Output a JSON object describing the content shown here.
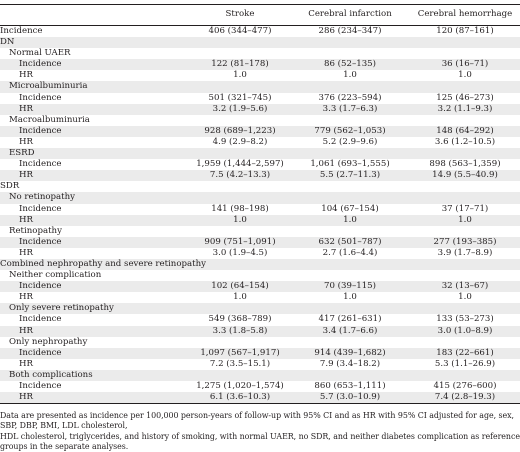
{
  "table": {
    "columns": [
      "",
      "Stroke",
      "Cerebral infarction",
      "Cerebral hemorrhage"
    ],
    "rows": [
      {
        "label": "Incidence",
        "indent": 0,
        "values": [
          "406 (344–477)",
          "286 (234–347)",
          "120 (87–161)"
        ]
      },
      {
        "label": "DN",
        "indent": 0,
        "values": [
          "",
          "",
          ""
        ]
      },
      {
        "label": "Normal UAER",
        "indent": 1,
        "values": [
          "",
          "",
          ""
        ]
      },
      {
        "label": "Incidence",
        "indent": 2,
        "values": [
          "122 (81–178)",
          "86 (52–135)",
          "36 (16–71)"
        ]
      },
      {
        "label": "HR",
        "indent": 2,
        "values": [
          "1.0",
          "1.0",
          "1.0"
        ]
      },
      {
        "label": "Microalbuminuria",
        "indent": 1,
        "values": [
          "",
          "",
          ""
        ]
      },
      {
        "label": "Incidence",
        "indent": 2,
        "values": [
          "501 (321–745)",
          "376 (223–594)",
          "125 (46–273)"
        ]
      },
      {
        "label": "HR",
        "indent": 2,
        "values": [
          "3.2 (1.9–5.6)",
          "3.3 (1.7–6.3)",
          "3.2 (1.1–9.3)"
        ]
      },
      {
        "label": "Macroalbuminuria",
        "indent": 1,
        "values": [
          "",
          "",
          ""
        ]
      },
      {
        "label": "Incidence",
        "indent": 2,
        "values": [
          "928 (689–1,223)",
          "779 (562–1,053)",
          "148 (64–292)"
        ]
      },
      {
        "label": "HR",
        "indent": 2,
        "values": [
          "4.9 (2.9–8.2)",
          "5.2 (2.9–9.6)",
          "3.6 (1.2–10.5)"
        ]
      },
      {
        "label": "ESRD",
        "indent": 1,
        "values": [
          "",
          "",
          ""
        ]
      },
      {
        "label": "Incidence",
        "indent": 2,
        "values": [
          "1,959 (1,444–2,597)",
          "1,061 (693–1,555)",
          "898 (563–1,359)"
        ]
      },
      {
        "label": "HR",
        "indent": 2,
        "values": [
          "7.5 (4.2–13.3)",
          "5.5 (2.7–11.3)",
          "14.9 (5.5–40.9)"
        ]
      },
      {
        "label": "SDR",
        "indent": 0,
        "values": [
          "",
          "",
          ""
        ]
      },
      {
        "label": "No retinopathy",
        "indent": 1,
        "values": [
          "",
          "",
          ""
        ]
      },
      {
        "label": "Incidence",
        "indent": 2,
        "values": [
          "141 (98–198)",
          "104 (67–154)",
          "37 (17–71)"
        ]
      },
      {
        "label": "HR",
        "indent": 2,
        "values": [
          "1.0",
          "1.0",
          "1.0"
        ]
      },
      {
        "label": "Retinopathy",
        "indent": 1,
        "values": [
          "",
          "",
          ""
        ]
      },
      {
        "label": "Incidence",
        "indent": 2,
        "values": [
          "909 (751–1,091)",
          "632 (501–787)",
          "277 (193–385)"
        ]
      },
      {
        "label": "HR",
        "indent": 2,
        "values": [
          "3.0 (1.9–4.5)",
          "2.7 (1.6–4.4)",
          "3.9 (1.7–8.9)"
        ]
      },
      {
        "label": "Combined nephropathy and severe retinopathy",
        "indent": 0,
        "values": [
          "",
          "",
          ""
        ]
      },
      {
        "label": "Neither complication",
        "indent": 1,
        "values": [
          "",
          "",
          ""
        ]
      },
      {
        "label": "Incidence",
        "indent": 2,
        "values": [
          "102 (64–154)",
          "70 (39–115)",
          "32 (13–67)"
        ]
      },
      {
        "label": "HR",
        "indent": 2,
        "values": [
          "1.0",
          "1.0",
          "1.0"
        ]
      },
      {
        "label": "Only severe retinopathy",
        "indent": 1,
        "values": [
          "",
          "",
          ""
        ]
      },
      {
        "label": "Incidence",
        "indent": 2,
        "values": [
          "549 (368–789)",
          "417 (261–631)",
          "133 (53–273)"
        ]
      },
      {
        "label": "HR",
        "indent": 2,
        "values": [
          "3.3 (1.8–5.8)",
          "3.4 (1.7–6.6)",
          "3.0 (1.0–8.9)"
        ]
      },
      {
        "label": "Only nephropathy",
        "indent": 1,
        "values": [
          "",
          "",
          ""
        ]
      },
      {
        "label": "Incidence",
        "indent": 2,
        "values": [
          "1,097 (567–1,917)",
          "914 (439–1,682)",
          "183 (22–661)"
        ]
      },
      {
        "label": "HR",
        "indent": 2,
        "values": [
          "7.2 (3.5–15.1)",
          "7.9 (3.4–18.2)",
          "5.3 (1.1–26.9)"
        ]
      },
      {
        "label": "Both complications",
        "indent": 1,
        "values": [
          "",
          "",
          ""
        ]
      },
      {
        "label": "Incidence",
        "indent": 2,
        "values": [
          "1,275 (1,020–1,574)",
          "860 (653–1,111)",
          "415 (276–600)"
        ]
      },
      {
        "label": "HR",
        "indent": 2,
        "values": [
          "6.1 (3.6–10.3)",
          "5.7 (3.0–10.9)",
          "7.4 (2.8–19.3)"
        ]
      }
    ]
  },
  "footnote": {
    "line1": "Data are presented as incidence per 100,000 person-years of follow-up with 95% CI and as HR with 95% CI adjusted for age, sex, SBP, DBP, BMI, LDL cholesterol,",
    "line2": "HDL cholesterol, triglycerides, and history of smoking, with normal UAER, no SDR, and neither diabetes complication as reference groups in the separate analyses."
  }
}
